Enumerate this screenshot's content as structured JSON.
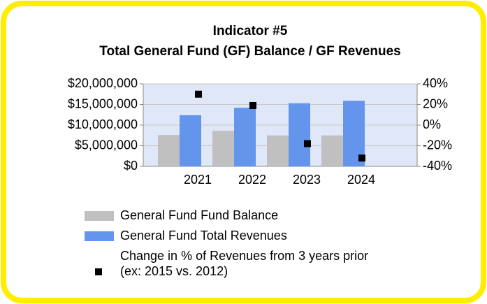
{
  "chart_data": {
    "type": "bar",
    "title": [
      "Indicator #5",
      "Total General Fund (GF) Balance / GF Revenues"
    ],
    "categories": [
      "2021",
      "2022",
      "2023",
      "2024"
    ],
    "series": [
      {
        "name": "General Fund Fund Balance",
        "color": "#c0c0c0",
        "values": [
          7600000,
          8600000,
          7500000,
          7500000
        ]
      },
      {
        "name": "General Fund Total Revenues",
        "color": "#6495ed",
        "values": [
          12400000,
          14200000,
          15300000,
          15900000
        ]
      },
      {
        "name": [
          "Change in % of Revenues from 3 years prior",
          "(ex: 2015 vs. 2012)"
        ],
        "color": "#000000",
        "type": "scatter",
        "axis": "y2",
        "values": [
          30,
          19,
          -18,
          -32
        ]
      }
    ],
    "ylim": [
      0,
      20000000
    ],
    "yticks": [
      {
        "value": 0,
        "label": "$0"
      },
      {
        "value": 5000000,
        "label": "$5,000,000"
      },
      {
        "value": 10000000,
        "label": "$10,000,000"
      },
      {
        "value": 15000000,
        "label": "$15,000,000"
      },
      {
        "value": 20000000,
        "label": "$20,000,000"
      }
    ],
    "y2lim": [
      -40,
      40
    ],
    "y2ticks": [
      {
        "value": -40,
        "label": "-40%"
      },
      {
        "value": -20,
        "label": "-20%"
      },
      {
        "value": 0,
        "label": "0%"
      },
      {
        "value": 20,
        "label": "20%"
      },
      {
        "value": 40,
        "label": "40%"
      }
    ],
    "grid": true
  }
}
